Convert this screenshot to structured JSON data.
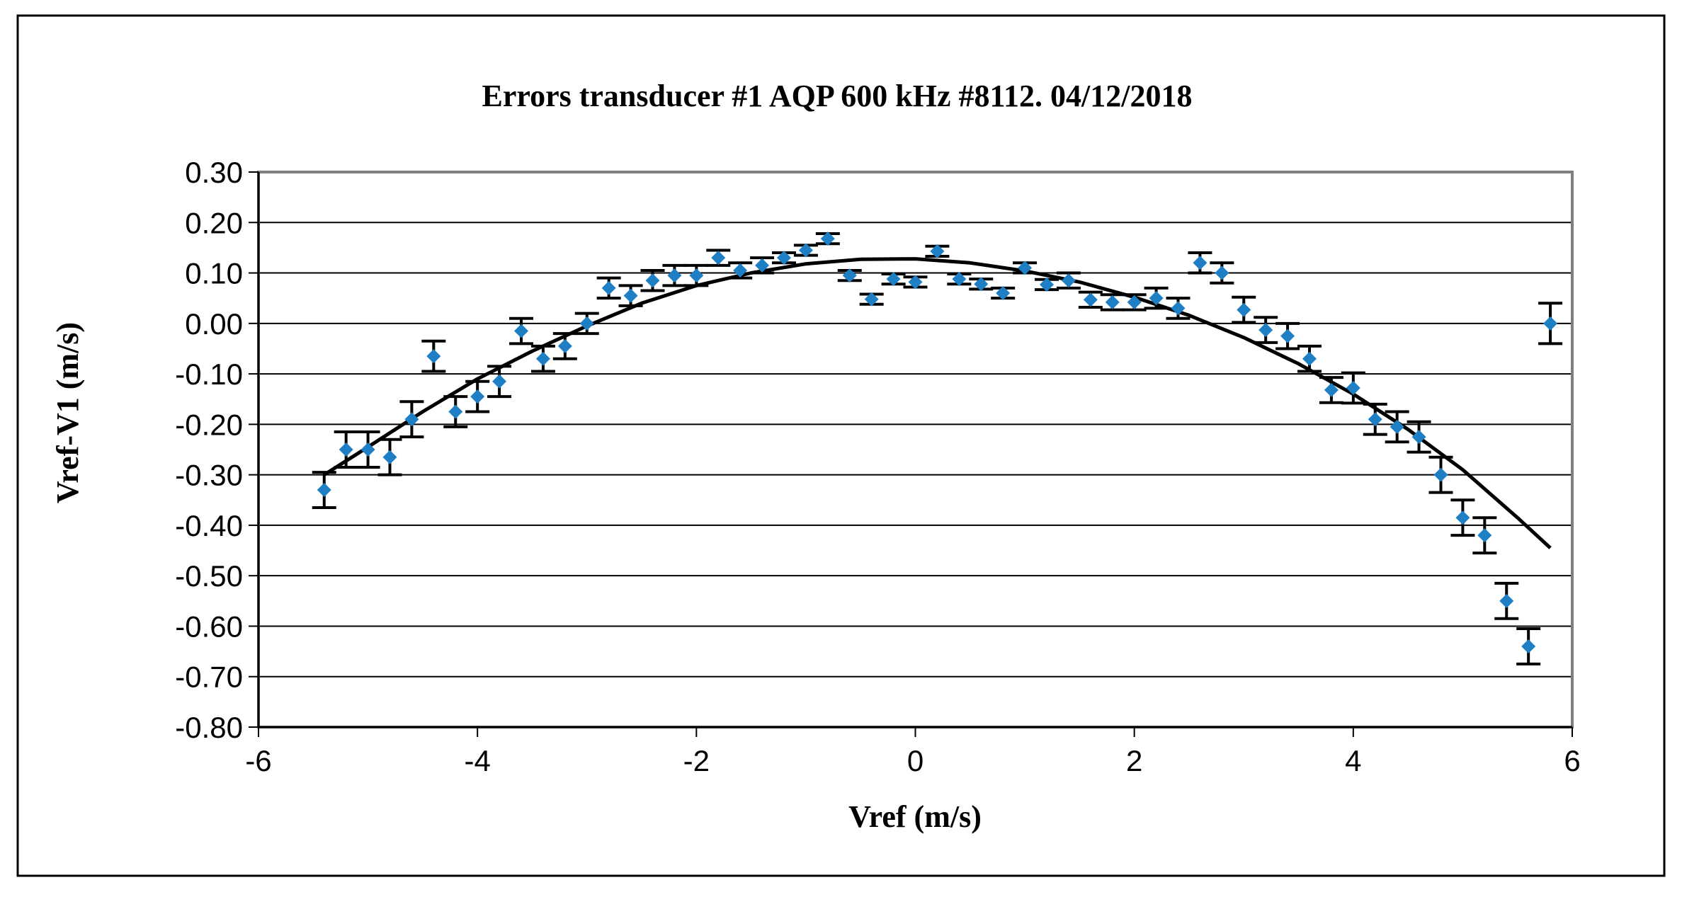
{
  "chart_data": {
    "type": "scatter",
    "title": "Errors transducer  #1 AQP 600  kHz  #8112.  04/12/2018",
    "xlabel": "Vref (m/s)",
    "ylabel": "Vref-V1 (m/s)",
    "xlim": [
      -6,
      6
    ],
    "ylim": [
      -0.8,
      0.3
    ],
    "x_ticks": [
      -6,
      -4,
      -2,
      0,
      2,
      4,
      6
    ],
    "x_tick_labels": [
      "-6",
      "-4",
      "-2",
      "0",
      "2",
      "4",
      "6"
    ],
    "y_ticks": [
      0.3,
      0.2,
      0.1,
      0.0,
      -0.1,
      -0.2,
      -0.3,
      -0.4,
      -0.5,
      -0.6,
      -0.7,
      -0.8
    ],
    "y_tick_labels": [
      "0.30",
      "0.20",
      "0.10",
      "0.00",
      "-0.10",
      "-0.20",
      "-0.30",
      "-0.40",
      "-0.50",
      "-0.60",
      "-0.70",
      "-0.80"
    ],
    "grid": "horizontal",
    "legend": "none",
    "colors": {
      "marker": "#1f7fc4",
      "trendline": "#000000",
      "errorbar": "#000000",
      "grid": "#000000",
      "plot_border": "#7f7f7f"
    },
    "points": [
      {
        "x": -5.4,
        "y": -0.33,
        "err": 0.035
      },
      {
        "x": -5.2,
        "y": -0.25,
        "err": 0.035
      },
      {
        "x": -5.0,
        "y": -0.25,
        "err": 0.035
      },
      {
        "x": -4.8,
        "y": -0.265,
        "err": 0.035
      },
      {
        "x": -4.6,
        "y": -0.19,
        "err": 0.035
      },
      {
        "x": -4.4,
        "y": -0.065,
        "err": 0.03
      },
      {
        "x": -4.2,
        "y": -0.175,
        "err": 0.03
      },
      {
        "x": -4.0,
        "y": -0.145,
        "err": 0.03
      },
      {
        "x": -3.8,
        "y": -0.115,
        "err": 0.03
      },
      {
        "x": -3.6,
        "y": -0.015,
        "err": 0.025
      },
      {
        "x": -3.4,
        "y": -0.07,
        "err": 0.025
      },
      {
        "x": -3.2,
        "y": -0.045,
        "err": 0.025
      },
      {
        "x": -3.0,
        "y": 0.0,
        "err": 0.02
      },
      {
        "x": -2.8,
        "y": 0.07,
        "err": 0.02
      },
      {
        "x": -2.6,
        "y": 0.055,
        "err": 0.02
      },
      {
        "x": -2.4,
        "y": 0.085,
        "err": 0.02
      },
      {
        "x": -2.2,
        "y": 0.095,
        "err": 0.02
      },
      {
        "x": -2.0,
        "y": 0.095,
        "err": 0.02
      },
      {
        "x": -1.8,
        "y": 0.13,
        "err": 0.015
      },
      {
        "x": -1.6,
        "y": 0.105,
        "err": 0.015
      },
      {
        "x": -1.4,
        "y": 0.115,
        "err": 0.015
      },
      {
        "x": -1.2,
        "y": 0.13,
        "err": 0.01
      },
      {
        "x": -1.0,
        "y": 0.145,
        "err": 0.01
      },
      {
        "x": -0.8,
        "y": 0.168,
        "err": 0.01
      },
      {
        "x": -0.6,
        "y": 0.095,
        "err": 0.01
      },
      {
        "x": -0.4,
        "y": 0.048,
        "err": 0.01
      },
      {
        "x": -0.2,
        "y": 0.088,
        "err": 0.01
      },
      {
        "x": 0.0,
        "y": 0.082,
        "err": 0.01
      },
      {
        "x": 0.2,
        "y": 0.143,
        "err": 0.01
      },
      {
        "x": 0.4,
        "y": 0.088,
        "err": 0.01
      },
      {
        "x": 0.6,
        "y": 0.078,
        "err": 0.01
      },
      {
        "x": 0.8,
        "y": 0.06,
        "err": 0.01
      },
      {
        "x": 1.0,
        "y": 0.11,
        "err": 0.01
      },
      {
        "x": 1.2,
        "y": 0.077,
        "err": 0.01
      },
      {
        "x": 1.4,
        "y": 0.085,
        "err": 0.015
      },
      {
        "x": 1.6,
        "y": 0.047,
        "err": 0.015
      },
      {
        "x": 1.8,
        "y": 0.042,
        "err": 0.015
      },
      {
        "x": 2.0,
        "y": 0.042,
        "err": 0.015
      },
      {
        "x": 2.2,
        "y": 0.05,
        "err": 0.02
      },
      {
        "x": 2.4,
        "y": 0.03,
        "err": 0.02
      },
      {
        "x": 2.6,
        "y": 0.12,
        "err": 0.02
      },
      {
        "x": 2.8,
        "y": 0.1,
        "err": 0.02
      },
      {
        "x": 3.0,
        "y": 0.027,
        "err": 0.025
      },
      {
        "x": 3.2,
        "y": -0.013,
        "err": 0.025
      },
      {
        "x": 3.4,
        "y": -0.025,
        "err": 0.025
      },
      {
        "x": 3.6,
        "y": -0.07,
        "err": 0.025
      },
      {
        "x": 3.8,
        "y": -0.132,
        "err": 0.025
      },
      {
        "x": 4.0,
        "y": -0.128,
        "err": 0.03
      },
      {
        "x": 4.2,
        "y": -0.19,
        "err": 0.03
      },
      {
        "x": 4.4,
        "y": -0.205,
        "err": 0.03
      },
      {
        "x": 4.6,
        "y": -0.225,
        "err": 0.03
      },
      {
        "x": 4.8,
        "y": -0.3,
        "err": 0.035
      },
      {
        "x": 5.0,
        "y": -0.385,
        "err": 0.035
      },
      {
        "x": 5.2,
        "y": -0.42,
        "err": 0.035
      },
      {
        "x": 5.4,
        "y": -0.55,
        "err": 0.035
      },
      {
        "x": 5.6,
        "y": -0.64,
        "err": 0.035
      },
      {
        "x": 5.8,
        "y": 0.0,
        "err": 0.04
      }
    ],
    "trendline": {
      "type": "polynomial",
      "x": [
        -5.4,
        -5.0,
        -4.5,
        -4.0,
        -3.5,
        -3.0,
        -2.5,
        -2.0,
        -1.5,
        -1.0,
        -0.5,
        0.0,
        0.5,
        1.0,
        1.5,
        2.0,
        2.5,
        3.0,
        3.5,
        4.0,
        4.5,
        5.0,
        5.5,
        5.8
      ],
      "y": [
        -0.3,
        -0.245,
        -0.175,
        -0.11,
        -0.055,
        -0.005,
        0.04,
        0.075,
        0.1,
        0.118,
        0.127,
        0.128,
        0.12,
        0.104,
        0.082,
        0.052,
        0.016,
        -0.028,
        -0.08,
        -0.14,
        -0.21,
        -0.29,
        -0.385,
        -0.445
      ]
    }
  }
}
